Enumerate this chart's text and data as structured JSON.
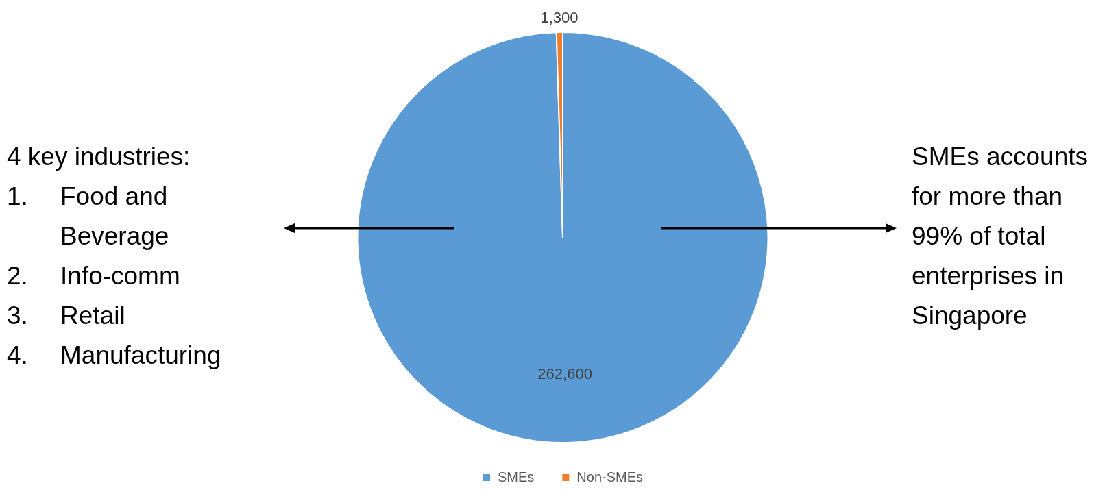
{
  "chart_data": {
    "type": "pie",
    "categories": [
      "SMEs",
      "Non-SMEs"
    ],
    "values": [
      262600,
      1300
    ],
    "colors": [
      "#5b9bd5",
      "#ed7d31"
    ],
    "value_labels": [
      "262,600",
      "1,300"
    ],
    "legend": "bottom",
    "annotations": [
      "4 key industries:",
      "1. Food and Beverage",
      "2. Info-comm",
      "3. Retail",
      "4. Manufacturing",
      "SMEs accounts for more than 99% of total enterprises in Singapore"
    ]
  }
}
